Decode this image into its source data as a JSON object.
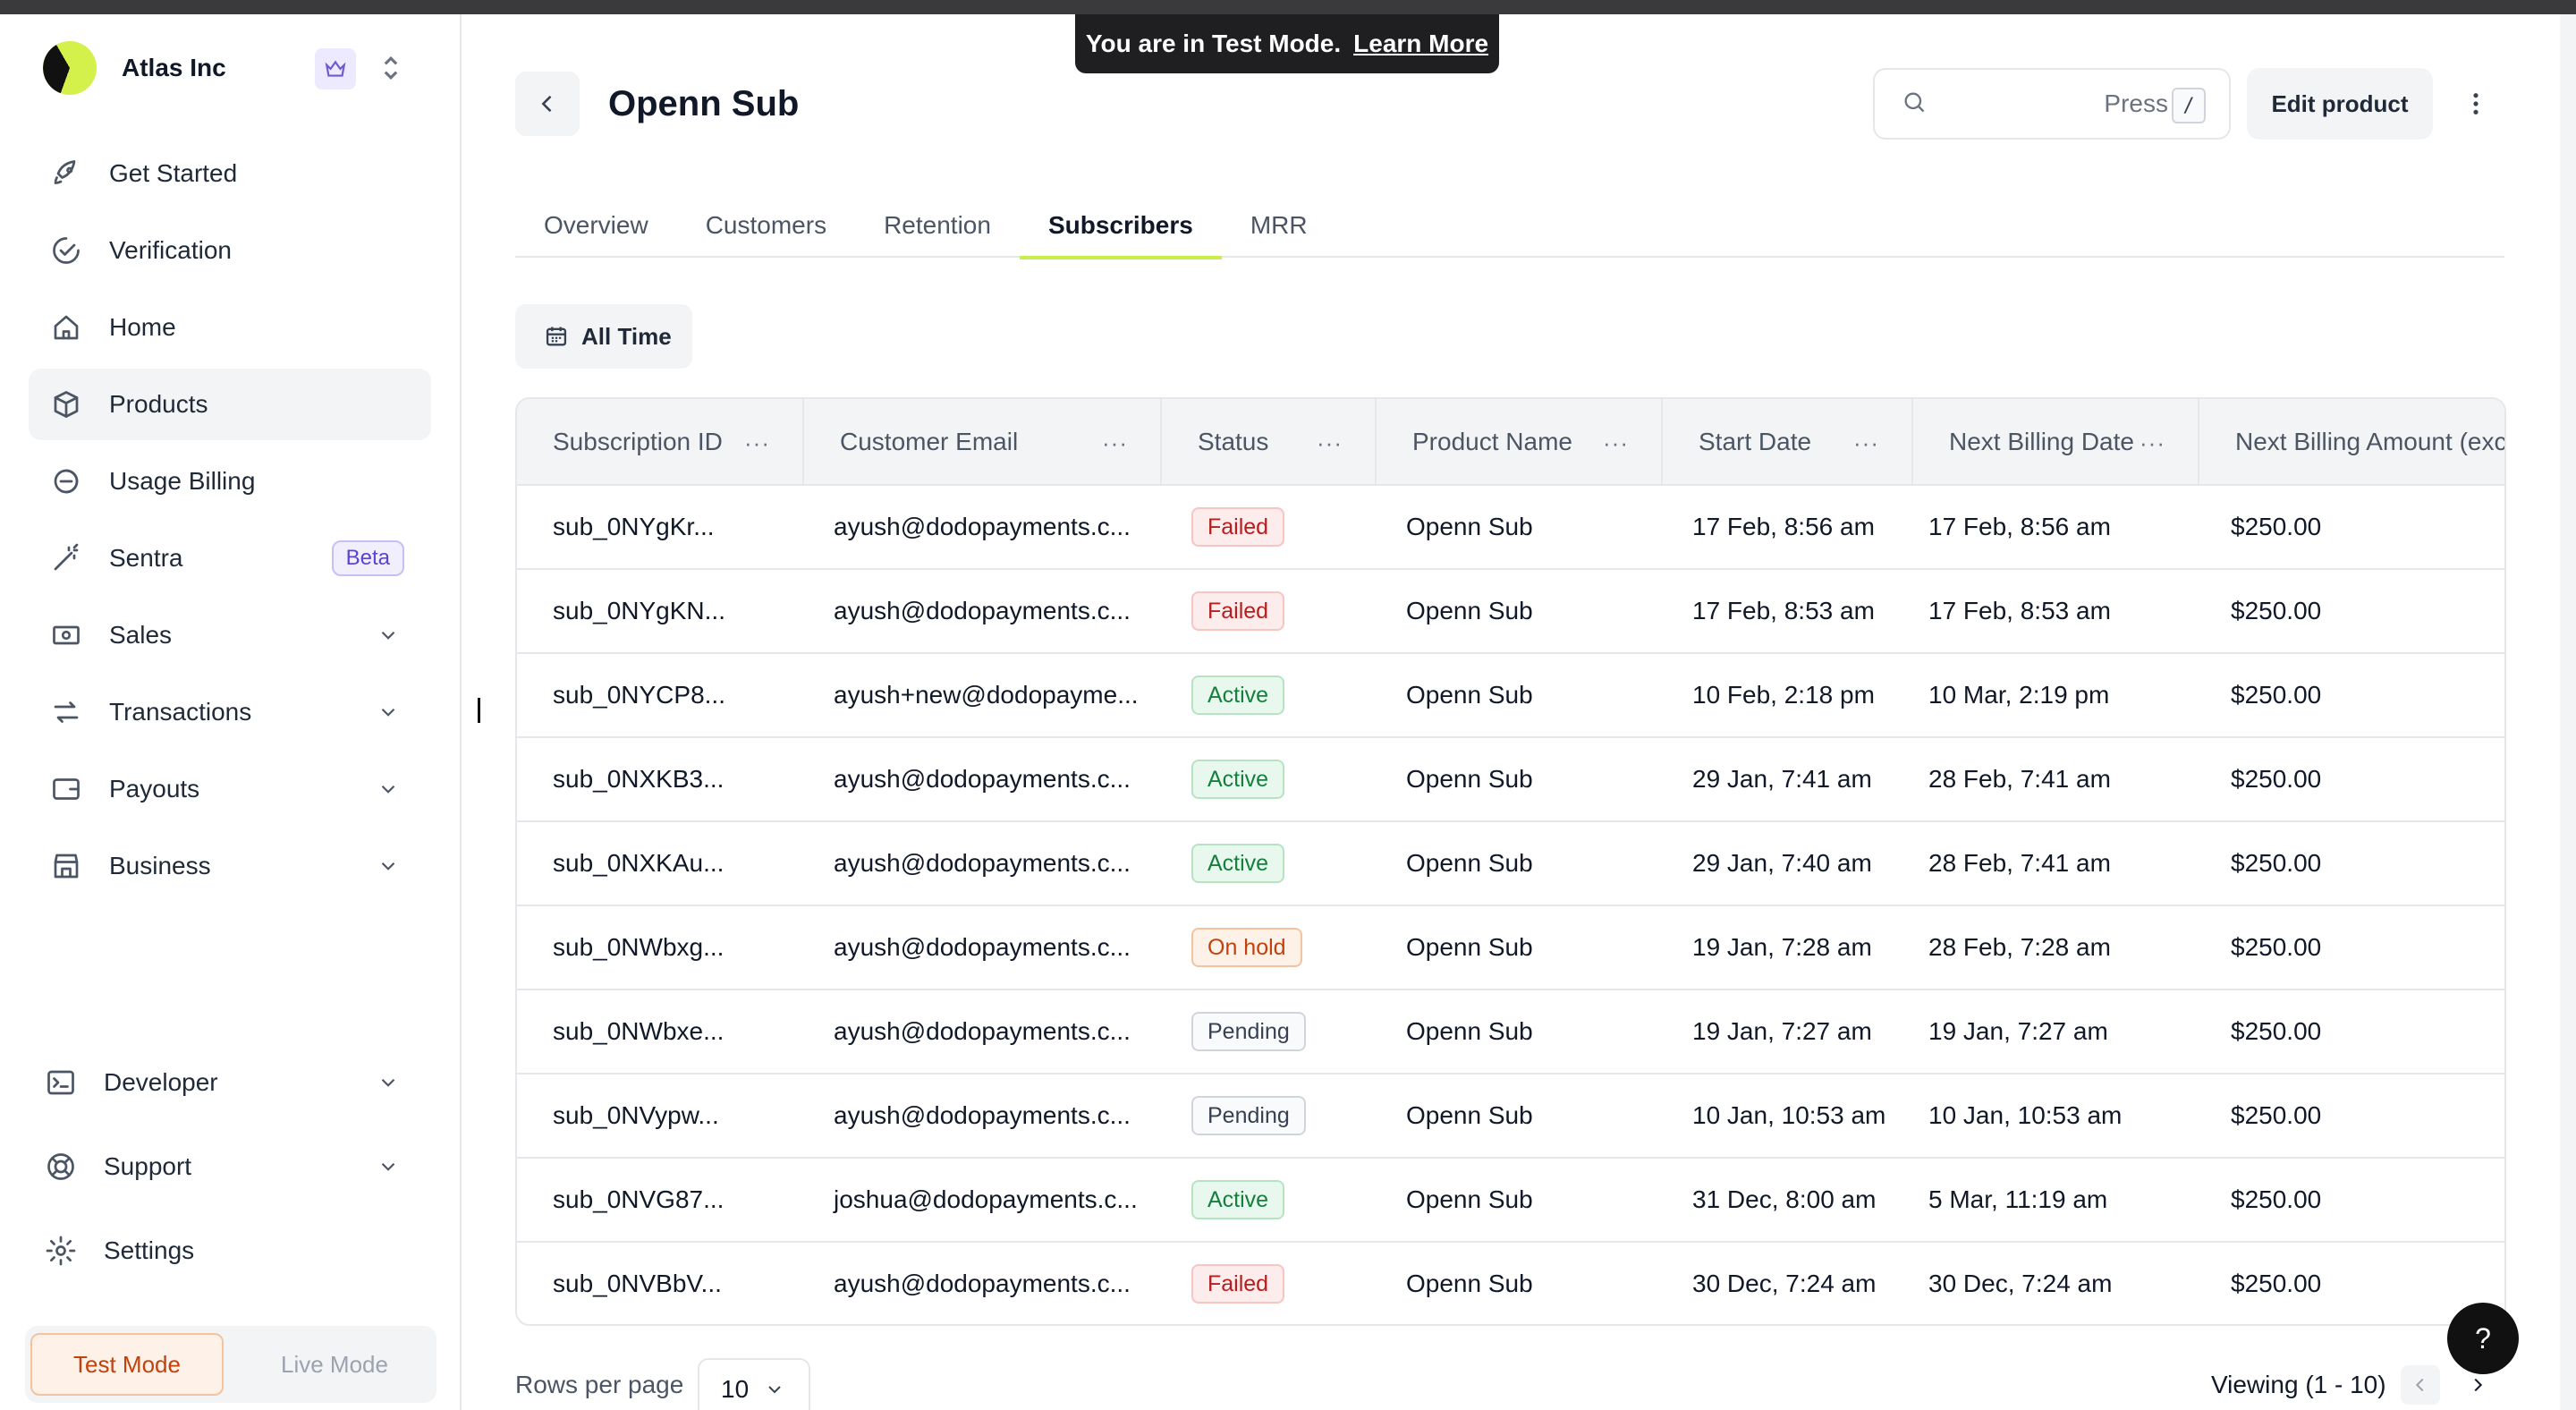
{
  "app": {
    "org_name": "Atlas Inc",
    "banner_text": "You are in Test Mode.",
    "banner_link": "Learn More"
  },
  "sidebar": {
    "items": [
      {
        "key": "get-started",
        "label": "Get Started",
        "icon": "rocket-icon"
      },
      {
        "key": "verification",
        "label": "Verification",
        "icon": "verification-icon"
      },
      {
        "key": "home",
        "label": "Home",
        "icon": "home-icon"
      },
      {
        "key": "products",
        "label": "Products",
        "icon": "box-icon",
        "active": true
      },
      {
        "key": "usage-billing",
        "label": "Usage Billing",
        "icon": "usage-icon"
      },
      {
        "key": "sentra",
        "label": "Sentra",
        "icon": "wand-icon",
        "badge": "Beta"
      },
      {
        "key": "sales",
        "label": "Sales",
        "icon": "cash-icon",
        "expandable": true
      },
      {
        "key": "transactions",
        "label": "Transactions",
        "icon": "arrows-icon",
        "expandable": true
      },
      {
        "key": "payouts",
        "label": "Payouts",
        "icon": "wallet-icon",
        "expandable": true
      },
      {
        "key": "business",
        "label": "Business",
        "icon": "store-icon",
        "expandable": true
      }
    ],
    "bottom_items": [
      {
        "key": "developer",
        "label": "Developer",
        "icon": "terminal-icon",
        "expandable": true
      },
      {
        "key": "support",
        "label": "Support",
        "icon": "lifebuoy-icon",
        "expandable": true
      },
      {
        "key": "settings",
        "label": "Settings",
        "icon": "gear-icon"
      }
    ],
    "mode": {
      "test": "Test Mode",
      "live": "Live Mode",
      "selected": "Test Mode"
    }
  },
  "header": {
    "title": "Openn Sub",
    "search_hint": "Press",
    "search_key": "/",
    "edit_label": "Edit product"
  },
  "tabs": [
    {
      "label": "Overview"
    },
    {
      "label": "Customers"
    },
    {
      "label": "Retention"
    },
    {
      "label": "Subscribers",
      "active": true
    },
    {
      "label": "MRR"
    }
  ],
  "filter": {
    "label": "All Time"
  },
  "table": {
    "columns": [
      "Subscription ID",
      "Customer Email",
      "Status",
      "Product Name",
      "Start Date",
      "Next Billing Date",
      "Next Billing Amount (excl"
    ],
    "rows": [
      {
        "id": "sub_0NYgKr...",
        "email": "ayush@dodopayments.c...",
        "status": "Failed",
        "status_kind": "failed",
        "product": "Openn Sub",
        "start": "17 Feb, 8:56 am",
        "next": "17 Feb, 8:56 am",
        "amount": "$250.00"
      },
      {
        "id": "sub_0NYgKN...",
        "email": "ayush@dodopayments.c...",
        "status": "Failed",
        "status_kind": "failed",
        "product": "Openn Sub",
        "start": "17 Feb, 8:53 am",
        "next": "17 Feb, 8:53 am",
        "amount": "$250.00"
      },
      {
        "id": "sub_0NYCP8...",
        "email": "ayush+new@dodopayme...",
        "status": "Active",
        "status_kind": "active",
        "product": "Openn Sub",
        "start": "10 Feb, 2:18 pm",
        "next": "10 Mar, 2:19 pm",
        "amount": "$250.00"
      },
      {
        "id": "sub_0NXKB3...",
        "email": "ayush@dodopayments.c...",
        "status": "Active",
        "status_kind": "active",
        "product": "Openn Sub",
        "start": "29 Jan, 7:41 am",
        "next": "28 Feb, 7:41 am",
        "amount": "$250.00"
      },
      {
        "id": "sub_0NXKAu...",
        "email": "ayush@dodopayments.c...",
        "status": "Active",
        "status_kind": "active",
        "product": "Openn Sub",
        "start": "29 Jan, 7:40 am",
        "next": "28 Feb, 7:41 am",
        "amount": "$250.00"
      },
      {
        "id": "sub_0NWbxg...",
        "email": "ayush@dodopayments.c...",
        "status": "On hold",
        "status_kind": "onhold",
        "product": "Openn Sub",
        "start": "19 Jan, 7:28 am",
        "next": "28 Feb, 7:28 am",
        "amount": "$250.00"
      },
      {
        "id": "sub_0NWbxe...",
        "email": "ayush@dodopayments.c...",
        "status": "Pending",
        "status_kind": "pending",
        "product": "Openn Sub",
        "start": "19 Jan, 7:27 am",
        "next": "19 Jan, 7:27 am",
        "amount": "$250.00"
      },
      {
        "id": "sub_0NVypw...",
        "email": "ayush@dodopayments.c...",
        "status": "Pending",
        "status_kind": "pending",
        "product": "Openn Sub",
        "start": "10 Jan, 10:53 am",
        "next": "10 Jan, 10:53 am",
        "amount": "$250.00"
      },
      {
        "id": "sub_0NVG87...",
        "email": "joshua@dodopayments.c...",
        "status": "Active",
        "status_kind": "active",
        "product": "Openn Sub",
        "start": "31 Dec, 8:00 am",
        "next": "5 Mar, 11:19 am",
        "amount": "$250.00"
      },
      {
        "id": "sub_0NVBbV...",
        "email": "ayush@dodopayments.c...",
        "status": "Failed",
        "status_kind": "failed",
        "product": "Openn Sub",
        "start": "30 Dec, 7:24 am",
        "next": "30 Dec, 7:24 am",
        "amount": "$250.00"
      }
    ]
  },
  "footer": {
    "rows_label": "Rows per page",
    "rows_value": "10",
    "viewing": "Viewing (1 - 10)"
  },
  "help": {
    "label": "?"
  },
  "colors": {
    "accent": "#c9ef4f",
    "failed": "#b91c1c",
    "active": "#15803d",
    "onhold": "#c2410c"
  }
}
